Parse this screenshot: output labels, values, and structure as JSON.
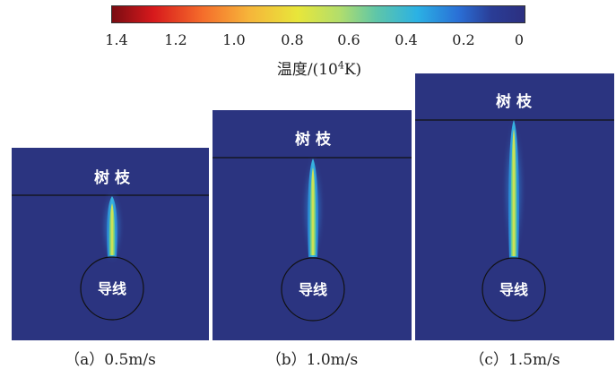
{
  "colorbar": {
    "ticks": [
      "1.4",
      "1.2",
      "1.0",
      "0.8",
      "0.6",
      "0.4",
      "0.2",
      "0"
    ],
    "title_prefix": "温度/(10",
    "title_exp": "4",
    "title_suffix": "K)",
    "gradient_colors": [
      "#7a0c12",
      "#d7191c",
      "#f56d2b",
      "#f6b43a",
      "#e8e63a",
      "#b3de6b",
      "#5fc6a8",
      "#2bb1e4",
      "#2a6fd6",
      "#2a3d96",
      "#2c2f80"
    ]
  },
  "panels": [
    {
      "id": "a",
      "tree_label": "树 枝",
      "wire_label": "导线",
      "caption": "（a）0.5m/s"
    },
    {
      "id": "b",
      "tree_label": "树 枝",
      "wire_label": "导线",
      "caption": "（b）1.0m/s"
    },
    {
      "id": "c",
      "tree_label": "树 枝",
      "wire_label": "导线",
      "caption": "（c）1.5m/s"
    }
  ],
  "colors": {
    "background": "#2b3480",
    "boundary": "#111111",
    "label": "#ffffff"
  }
}
